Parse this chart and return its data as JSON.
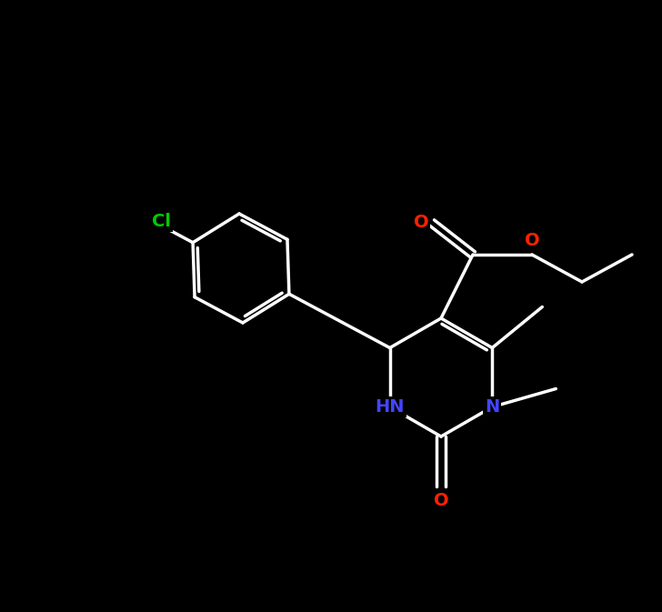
{
  "background_color": "#000000",
  "bond_color": "#ffffff",
  "bond_width": 2.5,
  "atom_colors": {
    "C": "#ffffff",
    "N": "#4444ff",
    "O": "#ff2200",
    "Cl": "#00cc00",
    "H": "#ffffff"
  },
  "font_size_label": 14,
  "font_size_atom": 13
}
